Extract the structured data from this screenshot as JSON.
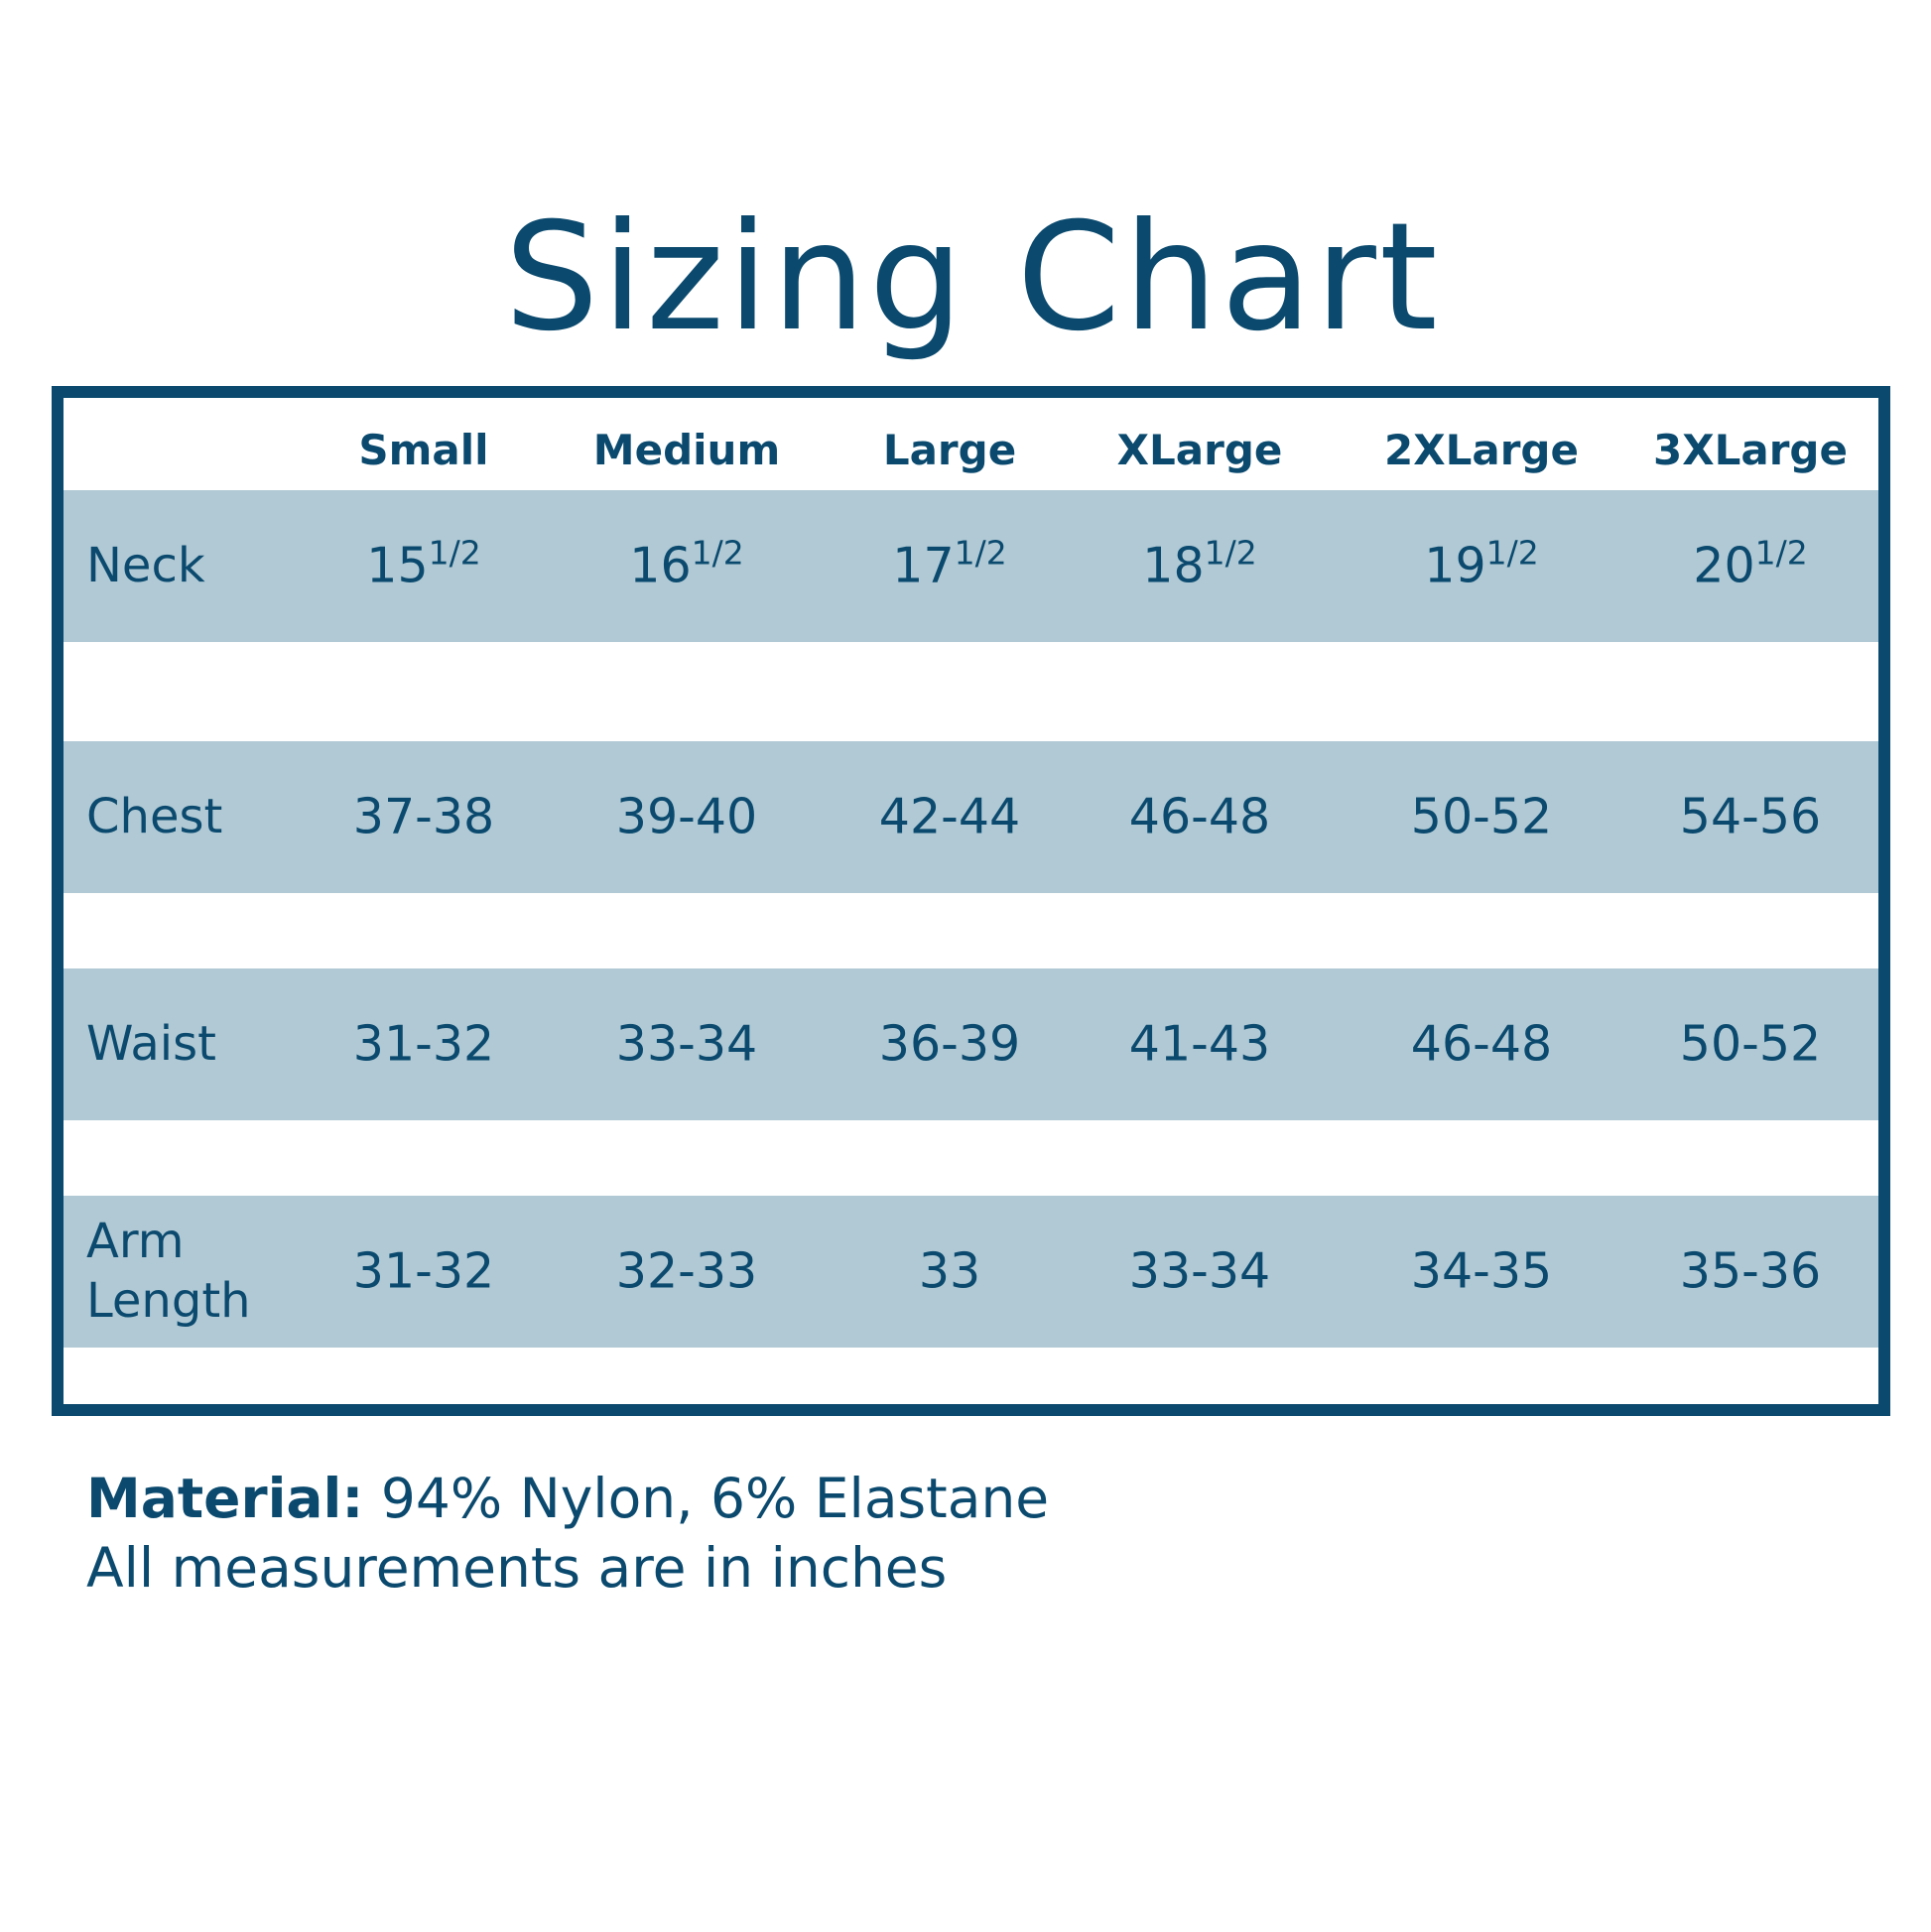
{
  "title": "Sizing Chart",
  "colors": {
    "primary": "#0b4a6e",
    "band": "#b0c9d5"
  },
  "columns": [
    "Small",
    "Medium",
    "Large",
    "XLarge",
    "2XLarge",
    "3XLarge"
  ],
  "rows": [
    {
      "label": "Neck",
      "values": [
        {
          "whole": "15",
          "frac": "1/2"
        },
        {
          "whole": "16",
          "frac": "1/2"
        },
        {
          "whole": "17",
          "frac": "1/2"
        },
        {
          "whole": "18",
          "frac": "1/2"
        },
        {
          "whole": "19",
          "frac": "1/2"
        },
        {
          "whole": "20",
          "frac": "1/2"
        }
      ]
    },
    {
      "label": "Chest",
      "values": [
        "37-38",
        "39-40",
        "42-44",
        "46-48",
        "50-52",
        "54-56"
      ]
    },
    {
      "label": "Waist",
      "values": [
        "31-32",
        "33-34",
        "36-39",
        "41-43",
        "46-48",
        "50-52"
      ]
    },
    {
      "label": "Arm Length",
      "values": [
        "31-32",
        "32-33",
        "33",
        "33-34",
        "34-35",
        "35-36"
      ]
    }
  ],
  "footer": {
    "material_label": "Material:",
    "material_value": " 94% Nylon, 6% Elastane",
    "note": "All measurements are in inches"
  }
}
